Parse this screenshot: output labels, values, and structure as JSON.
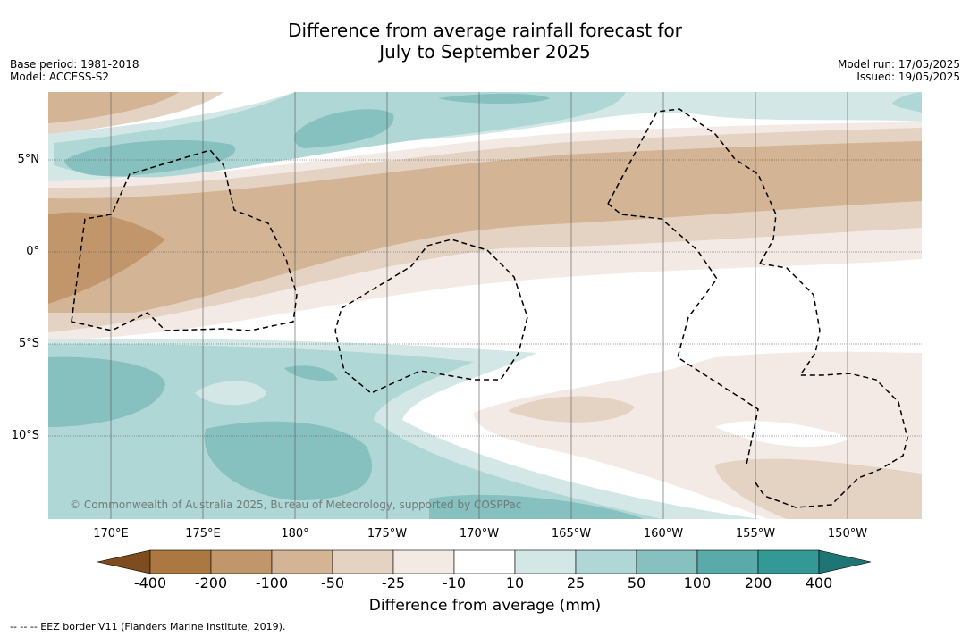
{
  "title_line1": "Difference from average rainfall forecast for",
  "title_line2": "July to September 2025",
  "meta_left": {
    "base_period": "Base period: 1981-2018",
    "model": "Model: ACCESS-S2"
  },
  "meta_right": {
    "model_run": "Model run: 17/05/2025",
    "issued": "Issued: 19/05/2025"
  },
  "lon_labels": [
    "170°E",
    "175°E",
    "180°",
    "175°W",
    "170°W",
    "165°W",
    "160°W",
    "155°W",
    "150°W"
  ],
  "lat_labels": [
    "5°N",
    "0°",
    "5°S",
    "10°S"
  ],
  "copyright": "© Commonwealth of Australia 2025, Bureau of Meteorology, supported by COSPPac",
  "colorbar": {
    "ticks": [
      "-400",
      "-200",
      "-100",
      "-50",
      "-25",
      "-10",
      "10",
      "25",
      "50",
      "100",
      "200",
      "400"
    ],
    "colors": [
      "#7e4c1f",
      "#ab7841",
      "#c0966a",
      "#d3b495",
      "#e4d2c2",
      "#f4eae5",
      "#ffffff",
      "#d3e8e6",
      "#aed7d5",
      "#86c0bf",
      "#5aaaa9",
      "#339996",
      "#1f7574"
    ],
    "title": "Difference from average (mm)"
  },
  "footer": "--  --  -- EEZ border V11 (Flanders Marine Institute, 2019)."
}
